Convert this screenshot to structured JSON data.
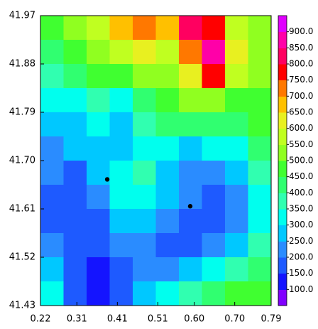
{
  "chart_data": {
    "type": "contour",
    "xlim": [
      0.22,
      0.79
    ],
    "ylim": [
      41.43,
      41.97
    ],
    "xticks": [
      0.22,
      0.31,
      0.41,
      0.51,
      {
        "value": 0.6,
        "label": "0.60"
      },
      {
        "value": 0.7,
        "label": "0.70"
      },
      0.79
    ],
    "yticks": [
      41.43,
      41.52,
      41.61,
      {
        "value": 41.7,
        "label": "41.70"
      },
      41.79,
      41.88,
      41.97
    ],
    "z": [
      [
        450,
        500,
        550,
        650,
        700,
        650,
        800,
        750,
        550,
        500
      ],
      [
        400,
        450,
        500,
        550,
        600,
        550,
        700,
        850,
        600,
        500
      ],
      [
        350,
        400,
        450,
        450,
        500,
        500,
        600,
        750,
        550,
        500
      ],
      [
        300,
        300,
        350,
        300,
        400,
        450,
        500,
        500,
        450,
        450
      ],
      [
        250,
        250,
        300,
        250,
        350,
        400,
        400,
        400,
        400,
        450
      ],
      [
        200,
        250,
        250,
        250,
        300,
        300,
        250,
        300,
        300,
        400
      ],
      [
        200,
        150,
        250,
        300,
        350,
        250,
        200,
        200,
        250,
        350
      ],
      [
        150,
        150,
        200,
        300,
        300,
        250,
        200,
        150,
        200,
        300
      ],
      [
        150,
        150,
        150,
        250,
        250,
        200,
        150,
        150,
        200,
        300
      ],
      [
        200,
        150,
        150,
        200,
        200,
        150,
        150,
        200,
        250,
        350
      ],
      [
        250,
        150,
        100,
        150,
        200,
        200,
        250,
        300,
        350,
        400
      ],
      [
        300,
        150,
        100,
        150,
        250,
        300,
        350,
        400,
        450,
        450
      ]
    ],
    "clim": [
      50,
      950
    ],
    "colors": [
      "#8000ff",
      "#1414ff",
      "#1e5aff",
      "#2a8cff",
      "#00c8ff",
      "#00ffee",
      "#30ffb0",
      "#30ff70",
      "#40ff30",
      "#90ff20",
      "#c0ff20",
      "#e8f020",
      "#ffc000",
      "#ff7800",
      "#ff0000",
      "#ff0060",
      "#ff00a8",
      "#e000ff"
    ],
    "cticks": [
      {
        "value": 100,
        "label": "100.0"
      },
      {
        "value": 150,
        "label": "150.0"
      },
      {
        "value": 200,
        "label": "200.0"
      },
      {
        "value": 250,
        "label": "250.0"
      },
      {
        "value": 300,
        "label": "300.0"
      },
      {
        "value": 350,
        "label": "350.0"
      },
      {
        "value": 400,
        "label": "400.0"
      },
      {
        "value": 450,
        "label": "450.0"
      },
      {
        "value": 500,
        "label": "500.0"
      },
      {
        "value": 550,
        "label": "550.0"
      },
      {
        "value": 600,
        "label": "600.0"
      },
      {
        "value": 650,
        "label": "650.0"
      },
      {
        "value": 700,
        "label": "700.0"
      },
      {
        "value": 750,
        "label": "750.0"
      },
      {
        "value": 800,
        "label": "800.0"
      },
      {
        "value": 850,
        "label": "850.0"
      },
      {
        "value": 900,
        "label": "900.0"
      }
    ],
    "points": {
      "x": [
        0.385,
        0.59
      ],
      "y": [
        41.665,
        41.615
      ]
    }
  }
}
